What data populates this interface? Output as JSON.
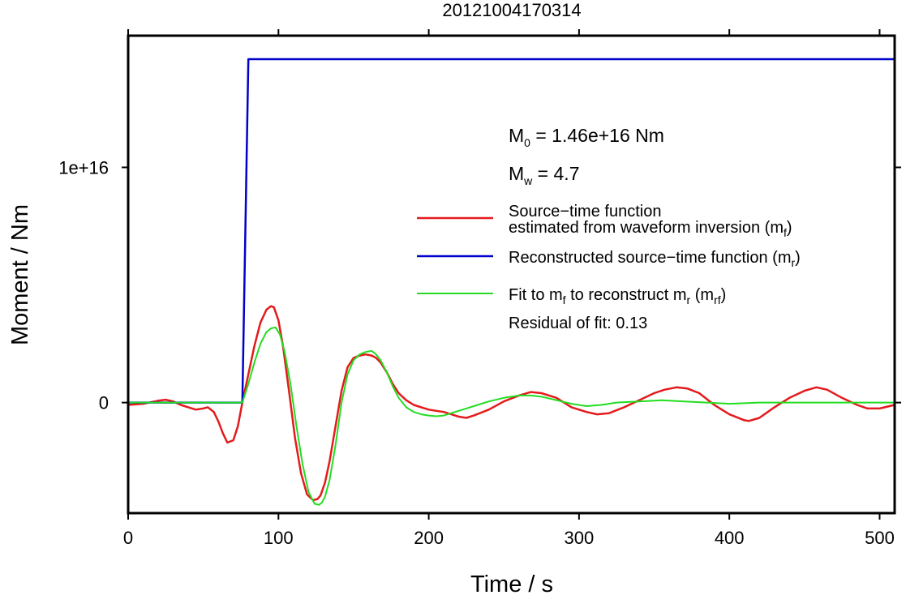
{
  "chart_data": {
    "type": "line",
    "title": "20121004170314",
    "xlabel": "Time / s",
    "ylabel": "Moment / Nm",
    "xlim": [
      0,
      510
    ],
    "ylim": [
      -4700000000000000.0,
      1.56e+16
    ],
    "x_ticks": [
      0,
      100,
      200,
      300,
      400,
      500
    ],
    "x_tick_labels": [
      "0",
      "100",
      "200",
      "300",
      "400",
      "500"
    ],
    "y_ticks": [
      0,
      1e+16
    ],
    "y_tick_labels": [
      "0",
      "1e+16"
    ],
    "grid": false,
    "legend_position": "right",
    "annotations": {
      "m0_text": "M",
      "m0_sub": "0",
      "m0_value": " = 1.46e+16 Nm",
      "mw_text": "M",
      "mw_sub": "w",
      "mw_value": " = 4.7",
      "residual": "Residual of fit: 0.13"
    },
    "legend": {
      "item1_line1": "Source−time function",
      "item1_line2": "estimated from waveform inversion (m",
      "item1_sub": "f",
      "item1_close": ")",
      "item2": "Reconstructed source−time function (m",
      "item2_sub": "r",
      "item2_close": ")",
      "item3_a": "Fit to m",
      "item3_sub1": "f",
      "item3_b": " to reconstruct m",
      "item3_sub2": "r",
      "item3_c": " (m",
      "item3_sub3": "rf",
      "item3_close": ")"
    },
    "series": [
      {
        "key": "mf",
        "color": "#e41a1c",
        "width": 2.5,
        "x": [
          0,
          10,
          20,
          25,
          30,
          35,
          40,
          45,
          50,
          53,
          57,
          60,
          63,
          66,
          70,
          73,
          76,
          80,
          84,
          88,
          92,
          95,
          97,
          100,
          103,
          107,
          111,
          115,
          119,
          123,
          126,
          128,
          131,
          134,
          138,
          142,
          146,
          150,
          154,
          158,
          162,
          165,
          168,
          172,
          176,
          180,
          185,
          190,
          195,
          200,
          205,
          210,
          215,
          220,
          225,
          230,
          240,
          250,
          260,
          268,
          275,
          285,
          295,
          305,
          312,
          320,
          330,
          340,
          350,
          357,
          365,
          372,
          380,
          390,
          400,
          410,
          413,
          420,
          430,
          440,
          450,
          458,
          465,
          475,
          485,
          492,
          500,
          510
        ],
        "y": [
          -100000000000000.0,
          -50000000000000.0,
          80000000000000.0,
          120000000000000.0,
          50000000000000.0,
          -100000000000000.0,
          -200000000000000.0,
          -300000000000000.0,
          -250000000000000.0,
          -200000000000000.0,
          -400000000000000.0,
          -800000000000000.0,
          -1300000000000000.0,
          -1700000000000000.0,
          -1600000000000000.0,
          -1000000000000000.0,
          0,
          1200000000000000.0,
          2400000000000000.0,
          3400000000000000.0,
          3950000000000000.0,
          4100000000000000.0,
          4050000000000000.0,
          3500000000000000.0,
          2400000000000000.0,
          500000000000000.0,
          -1500000000000000.0,
          -3000000000000000.0,
          -3900000000000000.0,
          -4150000000000000.0,
          -4100000000000000.0,
          -3950000000000000.0,
          -3400000000000000.0,
          -2500000000000000.0,
          -1000000000000000.0,
          500000000000000.0,
          1500000000000000.0,
          1900000000000000.0,
          2000000000000000.0,
          2050000000000000.0,
          2000000000000000.0,
          1900000000000000.0,
          1700000000000000.0,
          1300000000000000.0,
          800000000000000.0,
          400000000000000.0,
          100000000000000.0,
          -100000000000000.0,
          -200000000000000.0,
          -300000000000000.0,
          -350000000000000.0,
          -400000000000000.0,
          -500000000000000.0,
          -600000000000000.0,
          -650000000000000.0,
          -550000000000000.0,
          -300000000000000.0,
          50000000000000.0,
          300000000000000.0,
          450000000000000.0,
          400000000000000.0,
          200000000000000.0,
          -200000000000000.0,
          -400000000000000.0,
          -500000000000000.0,
          -450000000000000.0,
          -200000000000000.0,
          100000000000000.0,
          400000000000000.0,
          550000000000000.0,
          650000000000000.0,
          600000000000000.0,
          400000000000000.0,
          -100000000000000.0,
          -500000000000000.0,
          -750000000000000.0,
          -780000000000000.0,
          -650000000000000.0,
          -200000000000000.0,
          200000000000000.0,
          500000000000000.0,
          650000000000000.0,
          550000000000000.0,
          200000000000000.0,
          -100000000000000.0,
          -250000000000000.0,
          -250000000000000.0,
          -100000000000000.0
        ]
      },
      {
        "key": "mr",
        "color": "#0000cc",
        "width": 2.5,
        "x": [
          0,
          76,
          80,
          510
        ],
        "y": [
          0,
          0,
          1.46e+16,
          1.46e+16
        ]
      },
      {
        "key": "mrf",
        "color": "#22dd22",
        "width": 2,
        "x": [
          0,
          70,
          76,
          80,
          84,
          88,
          92,
          95,
          98,
          101,
          104,
          108,
          112,
          116,
          120,
          124,
          127,
          129,
          131,
          134,
          138,
          142,
          146,
          150,
          154,
          158,
          162,
          165,
          168,
          172,
          176,
          180,
          185,
          190,
          195,
          200,
          205,
          210,
          215,
          220,
          225,
          230,
          240,
          250,
          260,
          268,
          275,
          285,
          295,
          305,
          315,
          325,
          340,
          355,
          370,
          385,
          400,
          420,
          450,
          480,
          510
        ],
        "y": [
          0,
          0,
          0,
          800000000000000.0,
          1700000000000000.0,
          2500000000000000.0,
          3000000000000000.0,
          3150000000000000.0,
          3200000000000000.0,
          2900000000000000.0,
          2200000000000000.0,
          800000000000000.0,
          -1000000000000000.0,
          -2600000000000000.0,
          -3800000000000000.0,
          -4300000000000000.0,
          -4350000000000000.0,
          -4250000000000000.0,
          -4000000000000000.0,
          -3300000000000000.0,
          -1800000000000000.0,
          0,
          1200000000000000.0,
          1800000000000000.0,
          2050000000000000.0,
          2150000000000000.0,
          2200000000000000.0,
          2050000000000000.0,
          1800000000000000.0,
          1300000000000000.0,
          700000000000000.0,
          200000000000000.0,
          -200000000000000.0,
          -400000000000000.0,
          -500000000000000.0,
          -550000000000000.0,
          -580000000000000.0,
          -550000000000000.0,
          -450000000000000.0,
          -350000000000000.0,
          -250000000000000.0,
          -150000000000000.0,
          50000000000000.0,
          200000000000000.0,
          300000000000000.0,
          300000000000000.0,
          250000000000000.0,
          100000000000000.0,
          -50000000000000.0,
          -150000000000000.0,
          -100000000000000.0,
          0,
          50000000000000.0,
          100000000000000.0,
          50000000000000.0,
          0,
          -50000000000000.0,
          0,
          0,
          0,
          0
        ]
      }
    ]
  }
}
